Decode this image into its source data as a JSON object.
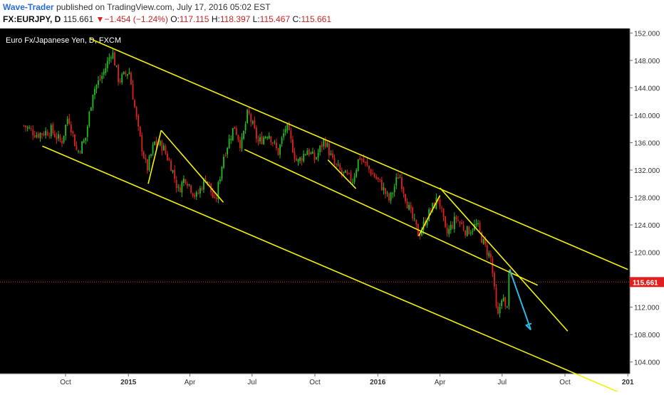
{
  "header": {
    "author": "Wave-Trader",
    "published_text": "published on TradingView.com, July 17, 2016 05:02 EST",
    "symbol": "FX:EURJPY, D",
    "last": "115.661",
    "change_arrow": "▼",
    "change": "−1.454 (−1.24%)",
    "open_label": "O:",
    "open": "117.115",
    "high_label": "H:",
    "high": "118.397",
    "low_label": "L:",
    "low": "115.467",
    "close_label": "C:",
    "close": "115.661"
  },
  "chart_data": {
    "type": "candlestick",
    "title": "Euro Fx/Japanese Yen, D, FXCM",
    "ylim": [
      100,
      154
    ],
    "y_ticks": [
      "104.000",
      "108.000",
      "112.000",
      "116.000",
      "120.000",
      "124.000",
      "128.000",
      "132.000",
      "136.000",
      "140.000",
      "144.000",
      "148.000",
      "152.000"
    ],
    "x_ticks": [
      "Oct",
      "2015",
      "Apr",
      "Jul",
      "Oct",
      "2016",
      "Apr",
      "Jul",
      "Oct",
      "201"
    ],
    "current_price": 115.661,
    "current_price_label": "115.661",
    "price_path": [
      {
        "date": "2014-08-01",
        "price": 138.5
      },
      {
        "date": "2014-08-20",
        "price": 137.2
      },
      {
        "date": "2014-09-10",
        "price": 137.8
      },
      {
        "date": "2014-09-25",
        "price": 136.0
      },
      {
        "date": "2014-10-05",
        "price": 140.0
      },
      {
        "date": "2014-10-18",
        "price": 134.5
      },
      {
        "date": "2014-10-30",
        "price": 136.5
      },
      {
        "date": "2014-11-10",
        "price": 143.5
      },
      {
        "date": "2014-11-25",
        "price": 146.0
      },
      {
        "date": "2014-12-08",
        "price": 149.5
      },
      {
        "date": "2014-12-18",
        "price": 145.0
      },
      {
        "date": "2015-01-02",
        "price": 146.5
      },
      {
        "date": "2015-01-15",
        "price": 138.0
      },
      {
        "date": "2015-01-28",
        "price": 132.0
      },
      {
        "date": "2015-02-08",
        "price": 136.0
      },
      {
        "date": "2015-02-20",
        "price": 135.5
      },
      {
        "date": "2015-03-05",
        "price": 132.5
      },
      {
        "date": "2015-03-15",
        "price": 129.0
      },
      {
        "date": "2015-03-25",
        "price": 131.0
      },
      {
        "date": "2015-04-10",
        "price": 128.0
      },
      {
        "date": "2015-04-25",
        "price": 131.0
      },
      {
        "date": "2015-05-08",
        "price": 127.0
      },
      {
        "date": "2015-05-20",
        "price": 134.0
      },
      {
        "date": "2015-06-05",
        "price": 138.5
      },
      {
        "date": "2015-06-15",
        "price": 135.5
      },
      {
        "date": "2015-06-25",
        "price": 140.5
      },
      {
        "date": "2015-07-10",
        "price": 136.0
      },
      {
        "date": "2015-07-25",
        "price": 137.5
      },
      {
        "date": "2015-08-08",
        "price": 134.5
      },
      {
        "date": "2015-08-20",
        "price": 138.5
      },
      {
        "date": "2015-09-05",
        "price": 133.0
      },
      {
        "date": "2015-09-20",
        "price": 135.0
      },
      {
        "date": "2015-10-01",
        "price": 133.5
      },
      {
        "date": "2015-10-15",
        "price": 136.5
      },
      {
        "date": "2015-10-28",
        "price": 133.0
      },
      {
        "date": "2015-11-10",
        "price": 131.5
      },
      {
        "date": "2015-11-25",
        "price": 130.5
      },
      {
        "date": "2015-12-05",
        "price": 134.0
      },
      {
        "date": "2015-12-20",
        "price": 132.0
      },
      {
        "date": "2016-01-05",
        "price": 130.0
      },
      {
        "date": "2016-01-18",
        "price": 127.5
      },
      {
        "date": "2016-02-01",
        "price": 131.5
      },
      {
        "date": "2016-02-15",
        "price": 126.5
      },
      {
        "date": "2016-03-01",
        "price": 122.5
      },
      {
        "date": "2016-03-15",
        "price": 125.5
      },
      {
        "date": "2016-03-30",
        "price": 128.0
      },
      {
        "date": "2016-04-10",
        "price": 122.5
      },
      {
        "date": "2016-04-25",
        "price": 125.0
      },
      {
        "date": "2016-05-10",
        "price": 123.0
      },
      {
        "date": "2016-05-25",
        "price": 124.0
      },
      {
        "date": "2016-06-05",
        "price": 121.0
      },
      {
        "date": "2016-06-15",
        "price": 119.0
      },
      {
        "date": "2016-06-24",
        "price": 110.0
      },
      {
        "date": "2016-07-01",
        "price": 114.0
      },
      {
        "date": "2016-07-07",
        "price": 111.0
      },
      {
        "date": "2016-07-12",
        "price": 117.5
      },
      {
        "date": "2016-07-15",
        "price": 115.661
      }
    ],
    "trend_lines": [
      {
        "color": "#f2f200",
        "from": {
          "date": "2014-11-05",
          "price": 151.2
        },
        "to": {
          "date": "2017-01-01",
          "price": 117.5
        }
      },
      {
        "color": "#f2f200",
        "from": {
          "date": "2014-08-28",
          "price": 135.5
        },
        "to": {
          "date": "2016-12-28",
          "price": 99.2
        }
      },
      {
        "color": "#f2f200",
        "from": {
          "date": "2015-06-20",
          "price": 135.0
        },
        "to": {
          "date": "2016-08-22",
          "price": 115.2
        }
      },
      {
        "color": "#f2f200",
        "from": {
          "date": "2015-01-30",
          "price": 130.0
        },
        "to": {
          "date": "2015-02-18",
          "price": 137.8
        }
      },
      {
        "color": "#f2f200",
        "from": {
          "date": "2015-02-18",
          "price": 137.8
        },
        "to": {
          "date": "2015-05-20",
          "price": 127.3
        }
      },
      {
        "color": "#f2f200",
        "from": {
          "date": "2015-10-20",
          "price": 133.5
        },
        "to": {
          "date": "2015-11-30",
          "price": 129.3
        }
      },
      {
        "color": "#f2f200",
        "from": {
          "date": "2016-03-01",
          "price": 122.4
        },
        "to": {
          "date": "2016-04-01",
          "price": 128.3
        }
      },
      {
        "color": "#f2f200",
        "from": {
          "date": "2016-04-01",
          "price": 129.4
        },
        "to": {
          "date": "2016-10-05",
          "price": 108.5
        }
      }
    ],
    "projection_arrow": {
      "color": "#2ab8e6",
      "from": {
        "date": "2016-07-12",
        "price": 117.5
      },
      "to": {
        "date": "2016-08-12",
        "price": 108.7
      }
    }
  }
}
